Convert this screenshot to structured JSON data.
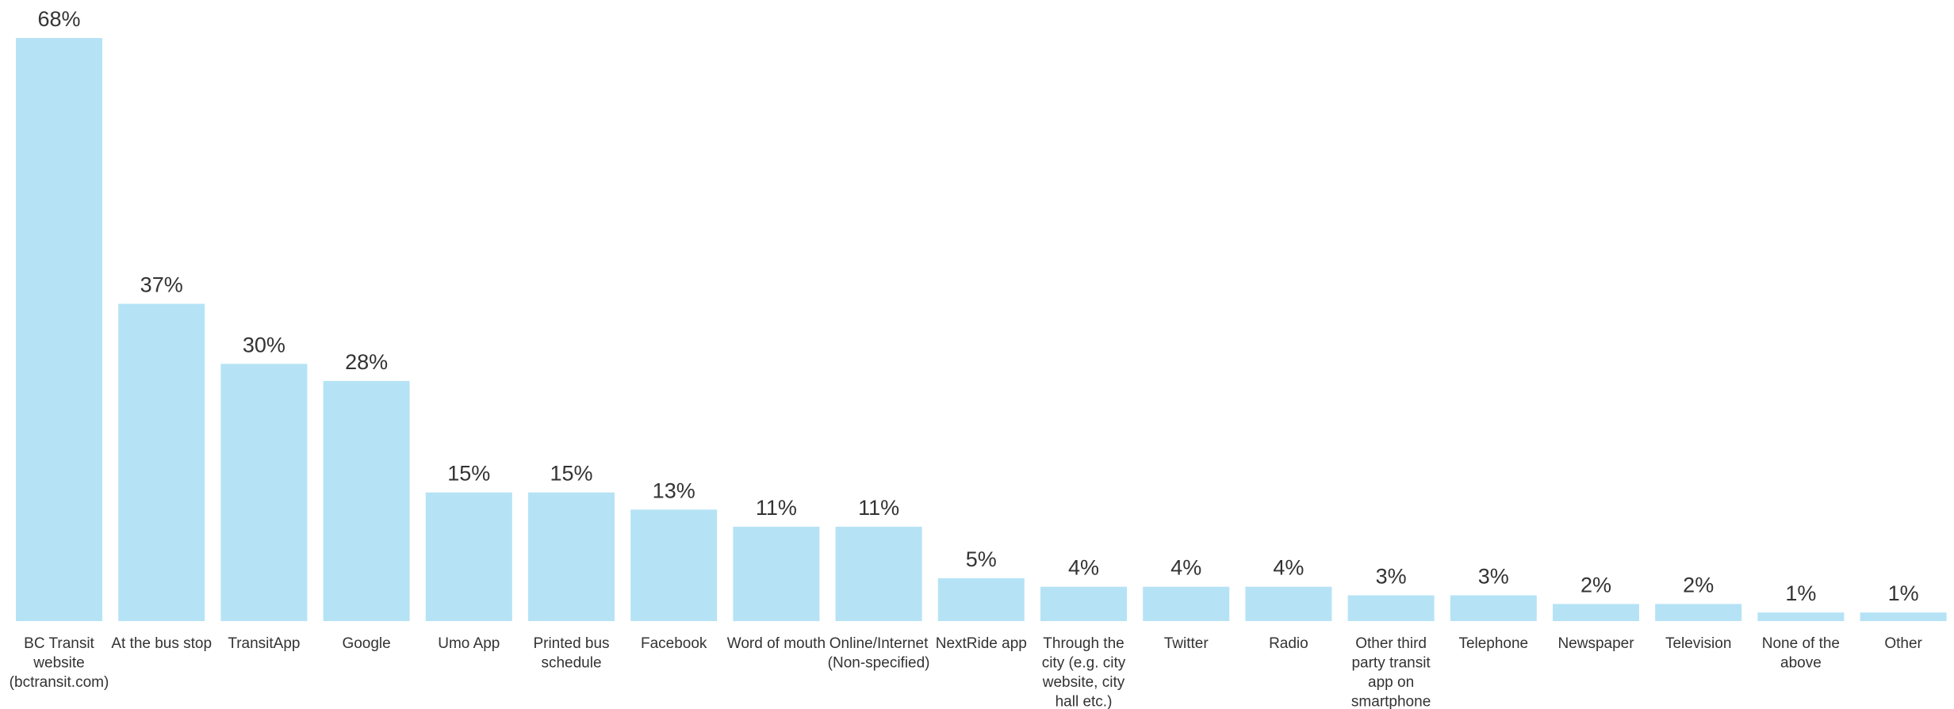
{
  "chart_data": {
    "type": "bar",
    "categories": [
      "BC Transit website (bctransit.com)",
      "At the bus stop",
      "TransitApp",
      "Google",
      "Umo App",
      "Printed bus schedule",
      "Facebook",
      "Word of mouth",
      "Online/Internet (Non-specified)",
      "NextRide app",
      "Through the city (e.g. city website, city hall etc.)",
      "Twitter",
      "Radio",
      "Other third party transit app on smartphone",
      "Telephone",
      "Newspaper",
      "Television",
      "None of the above",
      "Other"
    ],
    "category_lines": [
      [
        "BC Transit",
        "website",
        "(bctransit.com)"
      ],
      [
        "At the bus stop"
      ],
      [
        "TransitApp"
      ],
      [
        "Google"
      ],
      [
        "Umo App"
      ],
      [
        "Printed bus",
        "schedule"
      ],
      [
        "Facebook"
      ],
      [
        "Word of mouth"
      ],
      [
        "Online/Internet",
        "(Non-specified)"
      ],
      [
        "NextRide app"
      ],
      [
        "Through the",
        "city (e.g. city",
        "website, city",
        "hall etc.)"
      ],
      [
        "Twitter"
      ],
      [
        "Radio"
      ],
      [
        "Other third",
        "party transit",
        "app on",
        "smartphone"
      ],
      [
        "Telephone"
      ],
      [
        "Newspaper"
      ],
      [
        "Television"
      ],
      [
        "None of the",
        "above"
      ],
      [
        "Other"
      ]
    ],
    "values": [
      68,
      37,
      30,
      28,
      15,
      15,
      13,
      11,
      11,
      5,
      4,
      4,
      4,
      3,
      3,
      2,
      2,
      1,
      1
    ],
    "value_labels": [
      "68%",
      "37%",
      "30%",
      "28%",
      "15%",
      "15%",
      "13%",
      "11%",
      "11%",
      "5%",
      "4%",
      "4%",
      "4%",
      "3%",
      "3%",
      "2%",
      "2%",
      "1%",
      "1%"
    ],
    "title": "",
    "xlabel": "",
    "ylabel": "",
    "ylim": [
      0,
      68
    ],
    "grid": false,
    "bar_color": "#b5e3f5",
    "text_color": "#333333"
  }
}
